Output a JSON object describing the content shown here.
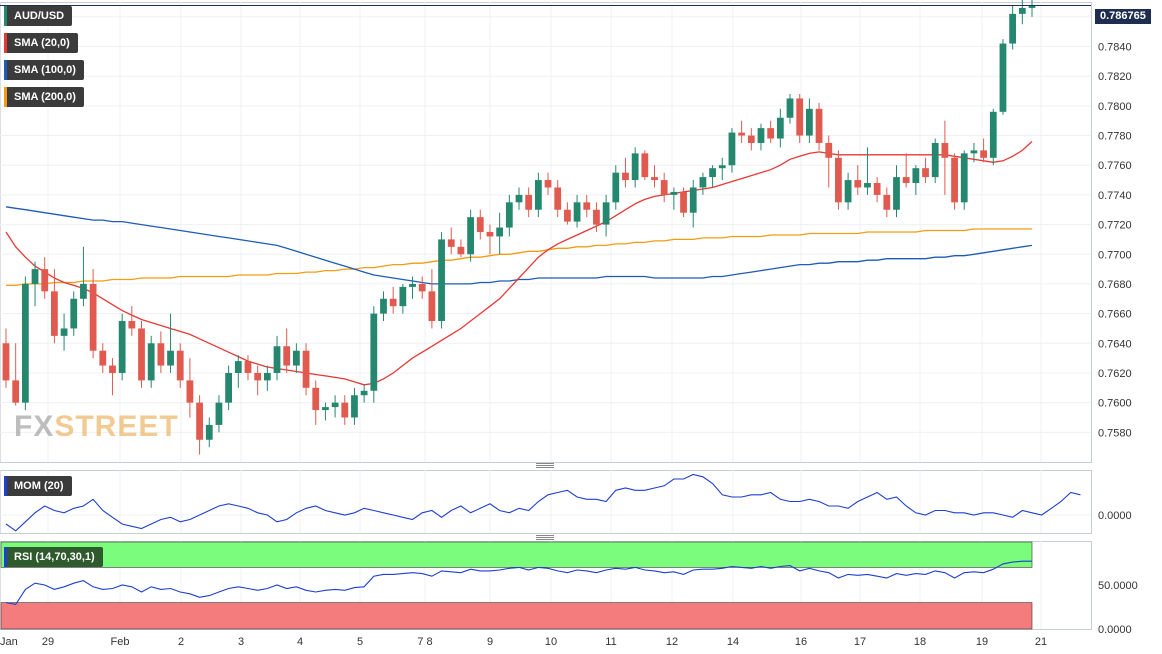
{
  "chart_data": [
    {
      "type": "candlestick",
      "symbol_label": "AUD/USD",
      "indicators": [
        {
          "label": "SMA (20,0)",
          "color": "#e53935"
        },
        {
          "label": "SMA (100,0)",
          "color": "#1e5bb8"
        },
        {
          "label": "SMA (200,0)",
          "color": "#f39c12"
        }
      ],
      "last_price": "0.786765",
      "ylim": [
        0.756,
        0.787
      ],
      "y_ticks": [
        "0.7580",
        "0.7600",
        "0.7620",
        "0.7640",
        "0.7660",
        "0.7680",
        "0.7700",
        "0.7720",
        "0.7740",
        "0.7760",
        "0.7780",
        "0.7800",
        "0.7820",
        "0.7840",
        "0.7860"
      ],
      "up_color": "#26876f",
      "down_color": "#e05a4f",
      "candles": [
        [
          0.764,
          0.765,
          0.761,
          0.7615
        ],
        [
          0.7615,
          0.764,
          0.7598,
          0.76
        ],
        [
          0.76,
          0.7685,
          0.7595,
          0.768
        ],
        [
          0.768,
          0.7695,
          0.7665,
          0.769
        ],
        [
          0.769,
          0.7698,
          0.767,
          0.7675
        ],
        [
          0.7675,
          0.769,
          0.764,
          0.7645
        ],
        [
          0.7645,
          0.766,
          0.7635,
          0.765
        ],
        [
          0.765,
          0.7675,
          0.7645,
          0.767
        ],
        [
          0.767,
          0.7705,
          0.7665,
          0.768
        ],
        [
          0.768,
          0.769,
          0.763,
          0.7635
        ],
        [
          0.7635,
          0.764,
          0.762,
          0.7625
        ],
        [
          0.7625,
          0.763,
          0.7605,
          0.762
        ],
        [
          0.762,
          0.766,
          0.7615,
          0.7655
        ],
        [
          0.7655,
          0.7665,
          0.7645,
          0.765
        ],
        [
          0.765,
          0.7655,
          0.761,
          0.7615
        ],
        [
          0.7615,
          0.7645,
          0.761,
          0.764
        ],
        [
          0.764,
          0.7648,
          0.762,
          0.7625
        ],
        [
          0.7625,
          0.766,
          0.762,
          0.7635
        ],
        [
          0.7635,
          0.764,
          0.761,
          0.7615
        ],
        [
          0.7615,
          0.763,
          0.759,
          0.76
        ],
        [
          0.76,
          0.7605,
          0.7565,
          0.7575
        ],
        [
          0.7575,
          0.759,
          0.757,
          0.7585
        ],
        [
          0.7585,
          0.7605,
          0.758,
          0.76
        ],
        [
          0.76,
          0.7625,
          0.7595,
          0.762
        ],
        [
          0.762,
          0.7632,
          0.761,
          0.7628
        ],
        [
          0.7628,
          0.7632,
          0.7615,
          0.762
        ],
        [
          0.762,
          0.7625,
          0.7605,
          0.7615
        ],
        [
          0.7615,
          0.7625,
          0.7608,
          0.762
        ],
        [
          0.762,
          0.7645,
          0.7615,
          0.7638
        ],
        [
          0.7638,
          0.765,
          0.762,
          0.7625
        ],
        [
          0.7625,
          0.764,
          0.762,
          0.7635
        ],
        [
          0.7635,
          0.764,
          0.7605,
          0.761
        ],
        [
          0.761,
          0.7615,
          0.7585,
          0.7595
        ],
        [
          0.7595,
          0.76,
          0.7588,
          0.7597
        ],
        [
          0.7597,
          0.7605,
          0.759,
          0.76
        ],
        [
          0.76,
          0.7605,
          0.7585,
          0.759
        ],
        [
          0.759,
          0.761,
          0.7585,
          0.7605
        ],
        [
          0.7605,
          0.7612,
          0.76,
          0.7608
        ],
        [
          0.7608,
          0.7665,
          0.76,
          0.766
        ],
        [
          0.766,
          0.7675,
          0.7655,
          0.767
        ],
        [
          0.767,
          0.7678,
          0.766,
          0.7665
        ],
        [
          0.7665,
          0.768,
          0.766,
          0.7678
        ],
        [
          0.7678,
          0.7685,
          0.767,
          0.768
        ],
        [
          0.768,
          0.7685,
          0.767,
          0.7675
        ],
        [
          0.7675,
          0.769,
          0.765,
          0.7655
        ],
        [
          0.7655,
          0.7715,
          0.765,
          0.771
        ],
        [
          0.771,
          0.7718,
          0.77,
          0.7705
        ],
        [
          0.7705,
          0.771,
          0.7698,
          0.77
        ],
        [
          0.77,
          0.773,
          0.7695,
          0.7725
        ],
        [
          0.7725,
          0.773,
          0.771,
          0.7715
        ],
        [
          0.7715,
          0.772,
          0.77,
          0.7712
        ],
        [
          0.7712,
          0.7728,
          0.77,
          0.7718
        ],
        [
          0.7718,
          0.774,
          0.7712,
          0.7735
        ],
        [
          0.7735,
          0.7745,
          0.773,
          0.774
        ],
        [
          0.774,
          0.7745,
          0.7725,
          0.773
        ],
        [
          0.773,
          0.7755,
          0.7725,
          0.775
        ],
        [
          0.775,
          0.7755,
          0.774,
          0.7745
        ],
        [
          0.7745,
          0.775,
          0.7725,
          0.773
        ],
        [
          0.773,
          0.7735,
          0.772,
          0.7722
        ],
        [
          0.7722,
          0.774,
          0.7718,
          0.7735
        ],
        [
          0.7735,
          0.774,
          0.7725,
          0.773
        ],
        [
          0.773,
          0.7735,
          0.7715,
          0.772
        ],
        [
          0.772,
          0.774,
          0.7712,
          0.7735
        ],
        [
          0.7735,
          0.776,
          0.773,
          0.7755
        ],
        [
          0.7755,
          0.7765,
          0.7745,
          0.775
        ],
        [
          0.775,
          0.7772,
          0.7745,
          0.7768
        ],
        [
          0.7768,
          0.777,
          0.775,
          0.7752
        ],
        [
          0.7752,
          0.776,
          0.7745,
          0.775
        ],
        [
          0.775,
          0.7755,
          0.7735,
          0.774
        ],
        [
          0.774,
          0.7745,
          0.773,
          0.7742
        ],
        [
          0.7742,
          0.7745,
          0.7725,
          0.7728
        ],
        [
          0.7728,
          0.775,
          0.7718,
          0.7745
        ],
        [
          0.7745,
          0.7755,
          0.774,
          0.7752
        ],
        [
          0.7752,
          0.776,
          0.7745,
          0.7758
        ],
        [
          0.7758,
          0.7765,
          0.775,
          0.776
        ],
        [
          0.776,
          0.7785,
          0.7755,
          0.7782
        ],
        [
          0.7782,
          0.779,
          0.7775,
          0.778
        ],
        [
          0.778,
          0.7785,
          0.777,
          0.7775
        ],
        [
          0.7775,
          0.7788,
          0.777,
          0.7785
        ],
        [
          0.7785,
          0.779,
          0.7775,
          0.7778
        ],
        [
          0.7778,
          0.7798,
          0.7772,
          0.7792
        ],
        [
          0.7792,
          0.7808,
          0.7788,
          0.7805
        ],
        [
          0.7805,
          0.7808,
          0.7775,
          0.778
        ],
        [
          0.778,
          0.7805,
          0.7775,
          0.7798
        ],
        [
          0.7798,
          0.7802,
          0.777,
          0.7775
        ],
        [
          0.7775,
          0.778,
          0.7745,
          0.7765
        ],
        [
          0.7765,
          0.777,
          0.773,
          0.7735
        ],
        [
          0.7735,
          0.7755,
          0.773,
          0.775
        ],
        [
          0.775,
          0.776,
          0.774,
          0.7745
        ],
        [
          0.7745,
          0.7772,
          0.774,
          0.7748
        ],
        [
          0.7748,
          0.7752,
          0.7735,
          0.774
        ],
        [
          0.774,
          0.7745,
          0.7725,
          0.773
        ],
        [
          0.773,
          0.776,
          0.7725,
          0.7752
        ],
        [
          0.7752,
          0.7768,
          0.7745,
          0.7748
        ],
        [
          0.7748,
          0.776,
          0.774,
          0.7758
        ],
        [
          0.7758,
          0.7765,
          0.7748,
          0.7752
        ],
        [
          0.7752,
          0.7778,
          0.7748,
          0.7775
        ],
        [
          0.7775,
          0.779,
          0.774,
          0.7765
        ],
        [
          0.7765,
          0.7768,
          0.773,
          0.7735
        ],
        [
          0.7735,
          0.777,
          0.773,
          0.7768
        ],
        [
          0.7768,
          0.7775,
          0.7762,
          0.777
        ],
        [
          0.777,
          0.7778,
          0.7762,
          0.7765
        ],
        [
          0.7765,
          0.7798,
          0.776,
          0.7796
        ],
        [
          0.7796,
          0.7845,
          0.7794,
          0.7842
        ],
        [
          0.7842,
          0.7868,
          0.7838,
          0.7862
        ],
        [
          0.7862,
          0.7875,
          0.7855,
          0.7866
        ],
        [
          0.7866,
          0.7872,
          0.786,
          0.7868
        ]
      ],
      "sma20": [
        0.7715,
        0.7705,
        0.7698,
        0.7692,
        0.7688,
        0.7684,
        0.7681,
        0.7679,
        0.7677,
        0.7674,
        0.767,
        0.7666,
        0.7662,
        0.7659,
        0.7656,
        0.7654,
        0.7652,
        0.765,
        0.7648,
        0.7646,
        0.7643,
        0.764,
        0.7637,
        0.7634,
        0.7631,
        0.7628,
        0.7626,
        0.7624,
        0.7623,
        0.7622,
        0.7621,
        0.762,
        0.7619,
        0.7618,
        0.7617,
        0.7616,
        0.7614,
        0.7612,
        0.7613,
        0.7616,
        0.762,
        0.7625,
        0.763,
        0.7634,
        0.7638,
        0.7642,
        0.7646,
        0.765,
        0.7655,
        0.766,
        0.7665,
        0.767,
        0.7677,
        0.7684,
        0.7691,
        0.7698,
        0.7703,
        0.7707,
        0.771,
        0.7713,
        0.7716,
        0.7719,
        0.7722,
        0.7726,
        0.773,
        0.7734,
        0.7737,
        0.7739,
        0.774,
        0.7741,
        0.7742,
        0.7743,
        0.7744,
        0.7745,
        0.7747,
        0.7749,
        0.7751,
        0.7753,
        0.7755,
        0.7757,
        0.776,
        0.7764,
        0.7766,
        0.7768,
        0.7769,
        0.7768,
        0.7767,
        0.7767,
        0.7767,
        0.7767,
        0.7767,
        0.7767,
        0.7767,
        0.7767,
        0.7767,
        0.7767,
        0.7767,
        0.7767,
        0.7766,
        0.7765,
        0.7764,
        0.7763,
        0.7762,
        0.7763,
        0.7766,
        0.777,
        0.7776
      ],
      "sma100": [
        0.7732,
        0.7731,
        0.773,
        0.7729,
        0.7728,
        0.7727,
        0.7726,
        0.7725,
        0.7724,
        0.7723,
        0.7723,
        0.7722,
        0.7722,
        0.7721,
        0.772,
        0.7719,
        0.7718,
        0.7717,
        0.7716,
        0.7715,
        0.7714,
        0.7713,
        0.7712,
        0.7711,
        0.771,
        0.7709,
        0.7708,
        0.7707,
        0.7706,
        0.7704,
        0.7702,
        0.77,
        0.7698,
        0.7696,
        0.7694,
        0.7692,
        0.769,
        0.7688,
        0.7686,
        0.7685,
        0.7684,
        0.7683,
        0.7682,
        0.7681,
        0.768,
        0.768,
        0.768,
        0.768,
        0.768,
        0.7681,
        0.7681,
        0.7682,
        0.7682,
        0.7683,
        0.7683,
        0.7684,
        0.7684,
        0.7684,
        0.7684,
        0.7684,
        0.7684,
        0.7684,
        0.7685,
        0.7685,
        0.7685,
        0.7685,
        0.7685,
        0.7684,
        0.7684,
        0.7684,
        0.7684,
        0.7684,
        0.7684,
        0.7685,
        0.7685,
        0.7686,
        0.7687,
        0.7688,
        0.7689,
        0.769,
        0.7691,
        0.7692,
        0.7693,
        0.7693,
        0.7694,
        0.7694,
        0.7695,
        0.7695,
        0.7695,
        0.7696,
        0.7696,
        0.7697,
        0.7697,
        0.7697,
        0.7697,
        0.7697,
        0.7698,
        0.7698,
        0.7699,
        0.7699,
        0.77,
        0.7701,
        0.7702,
        0.7703,
        0.7704,
        0.7705,
        0.7706
      ],
      "sma200": [
        0.7679,
        0.7679,
        0.768,
        0.768,
        0.768,
        0.7681,
        0.7681,
        0.7681,
        0.7682,
        0.7682,
        0.7682,
        0.7683,
        0.7683,
        0.7683,
        0.7684,
        0.7684,
        0.7684,
        0.7684,
        0.7685,
        0.7685,
        0.7685,
        0.7685,
        0.7685,
        0.7685,
        0.7686,
        0.7686,
        0.7686,
        0.7686,
        0.7687,
        0.7687,
        0.7687,
        0.7688,
        0.7688,
        0.7689,
        0.7689,
        0.769,
        0.769,
        0.7691,
        0.7691,
        0.7692,
        0.7693,
        0.7693,
        0.7694,
        0.7694,
        0.7695,
        0.7696,
        0.7696,
        0.7697,
        0.7698,
        0.7698,
        0.7699,
        0.77,
        0.77,
        0.7701,
        0.7702,
        0.7702,
        0.7703,
        0.7704,
        0.7704,
        0.7705,
        0.7705,
        0.7706,
        0.7706,
        0.7707,
        0.7707,
        0.7708,
        0.7708,
        0.7709,
        0.7709,
        0.771,
        0.771,
        0.771,
        0.7711,
        0.7711,
        0.7711,
        0.7712,
        0.7712,
        0.7712,
        0.7712,
        0.7713,
        0.7713,
        0.7713,
        0.7713,
        0.7714,
        0.7714,
        0.7714,
        0.7714,
        0.7714,
        0.7714,
        0.7715,
        0.7715,
        0.7715,
        0.7715,
        0.7715,
        0.7715,
        0.7716,
        0.7716,
        0.7716,
        0.7716,
        0.7716,
        0.7717,
        0.7717,
        0.7717,
        0.7717,
        0.7717,
        0.7717,
        0.7717
      ]
    },
    {
      "type": "line",
      "label": "MOM (20)",
      "color": "#1e3fcf",
      "y_tick": "0.0000",
      "ylim": [
        -0.4,
        1.0
      ],
      "values": [
        -0.2,
        -0.35,
        -0.15,
        0.05,
        0.2,
        0.1,
        0.05,
        0.15,
        0.2,
        0.35,
        0.1,
        -0.05,
        -0.2,
        -0.25,
        -0.3,
        -0.2,
        -0.1,
        -0.05,
        -0.15,
        -0.1,
        0.0,
        0.1,
        0.2,
        0.25,
        0.2,
        0.15,
        0.05,
        0.0,
        -0.15,
        -0.1,
        0.05,
        0.15,
        0.2,
        0.1,
        0.05,
        0.0,
        0.05,
        0.15,
        0.1,
        0.05,
        0.0,
        -0.05,
        -0.1,
        0.05,
        0.1,
        -0.05,
        0.1,
        0.2,
        0.05,
        0.15,
        0.25,
        0.1,
        0.05,
        0.15,
        0.1,
        0.3,
        0.45,
        0.5,
        0.55,
        0.4,
        0.35,
        0.35,
        0.3,
        0.55,
        0.6,
        0.55,
        0.55,
        0.6,
        0.65,
        0.8,
        0.8,
        0.9,
        0.85,
        0.7,
        0.45,
        0.4,
        0.4,
        0.45,
        0.45,
        0.5,
        0.35,
        0.3,
        0.3,
        0.35,
        0.3,
        0.2,
        0.2,
        0.15,
        0.3,
        0.4,
        0.5,
        0.35,
        0.4,
        0.2,
        0.05,
        0.0,
        0.1,
        0.1,
        0.05,
        0.05,
        0.0,
        0.05,
        0.05,
        0.0,
        -0.05,
        0.1,
        0.05,
        0.0,
        0.15,
        0.3,
        0.5,
        0.45
      ]
    },
    {
      "type": "line",
      "label": "RSI (14,70,30,1)",
      "color": "#1e3fcf",
      "overbought_color": "#7cfc7c",
      "oversold_color": "#f47c7c",
      "y_ticks": [
        "50.0000",
        "0.0000"
      ],
      "ylim": [
        0,
        100
      ],
      "levels": [
        70,
        30
      ],
      "values": [
        30,
        28,
        45,
        52,
        50,
        45,
        48,
        52,
        55,
        48,
        45,
        46,
        50,
        48,
        42,
        48,
        45,
        46,
        42,
        40,
        36,
        38,
        42,
        46,
        48,
        46,
        44,
        46,
        50,
        46,
        48,
        44,
        42,
        44,
        45,
        44,
        47,
        48,
        60,
        62,
        62,
        63,
        64,
        63,
        60,
        66,
        65,
        64,
        68,
        66,
        66,
        67,
        69,
        70,
        67,
        70,
        69,
        66,
        64,
        67,
        66,
        64,
        67,
        69,
        68,
        70,
        67,
        66,
        64,
        65,
        62,
        67,
        68,
        68,
        69,
        71,
        70,
        69,
        71,
        69,
        71,
        72,
        66,
        69,
        66,
        64,
        58,
        62,
        61,
        62,
        60,
        58,
        63,
        61,
        63,
        62,
        66,
        64,
        58,
        64,
        65,
        64,
        68,
        74,
        76,
        77,
        77
      ]
    }
  ],
  "x_labels": [
    "Jan",
    "29",
    "Feb",
    "2",
    "3",
    "4",
    "5",
    "7 8",
    "9",
    "10",
    "11",
    "12",
    "14",
    "16",
    "17",
    "18",
    "19",
    "21"
  ]
}
